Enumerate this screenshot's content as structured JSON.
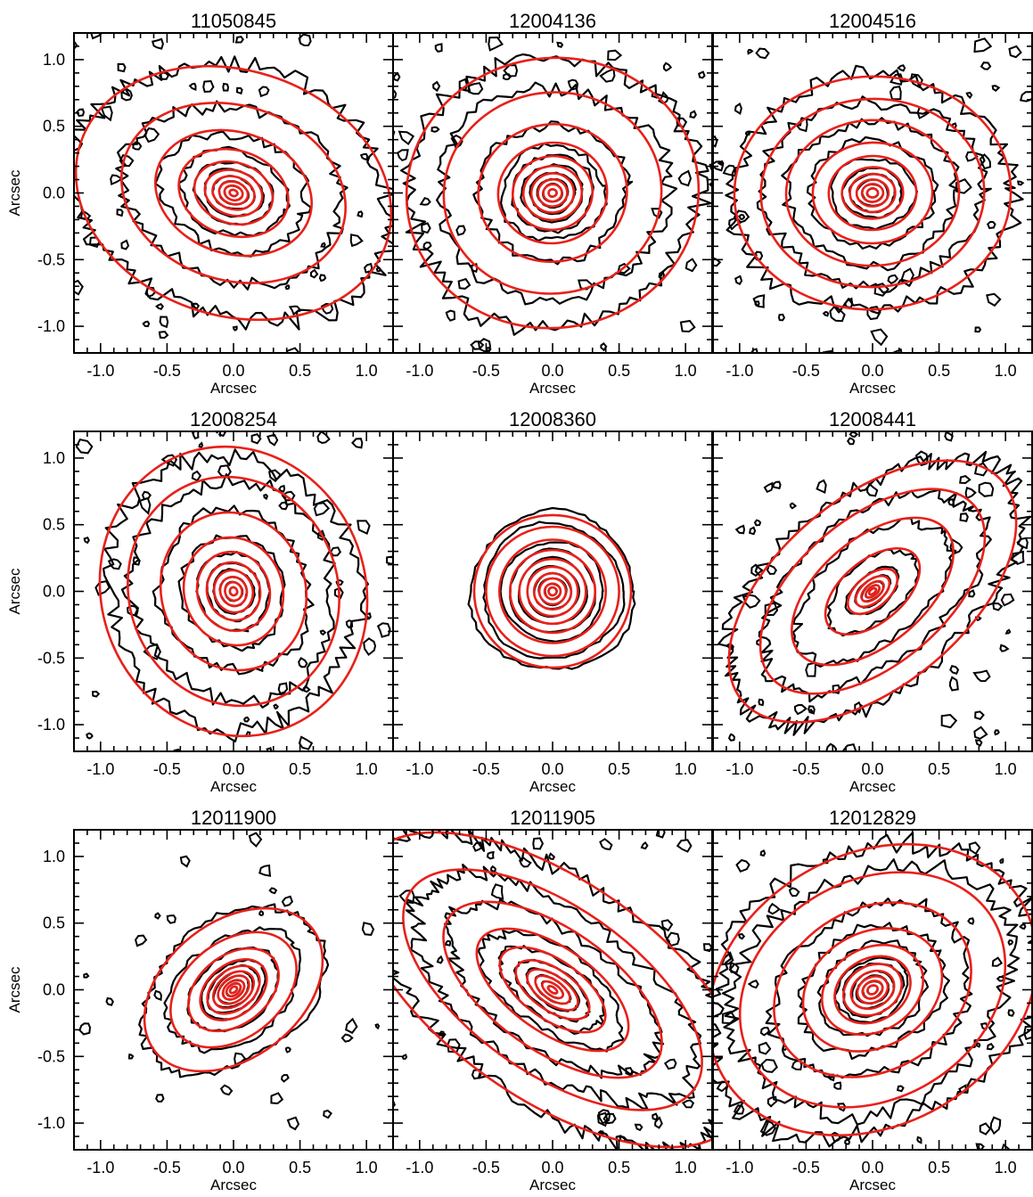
{
  "figure": {
    "colors": {
      "isophote_contours": "#000000",
      "ellipse_fits": "#e8201a",
      "axes": "#000000",
      "background": "#ffffff"
    },
    "grid": {
      "rows": 3,
      "cols": 3
    }
  },
  "chart_data": [
    {
      "type": "contour",
      "title": "11050845",
      "xlabel": "Arcsec",
      "ylabel": "Arcsec",
      "xlim": [
        -1.2,
        1.2
      ],
      "ylim": [
        -1.2,
        1.2
      ],
      "xticks": [
        "-1.0",
        "-0.5",
        "0.0",
        "0.5",
        "1.0"
      ],
      "yticks": [
        "-1.0",
        "-0.5",
        "0.0",
        "0.5",
        "1.0"
      ],
      "center": [
        0.0,
        0.0
      ],
      "ellipses": {
        "semi_major": [
          0.03,
          0.07,
          0.11,
          0.16,
          0.22,
          0.3,
          0.42,
          0.6,
          0.86,
          1.21
        ],
        "axis_ratio": 0.76,
        "position_angle_deg": -18
      },
      "contour_extent": 1.3,
      "noise": "high",
      "grid": false
    },
    {
      "type": "contour",
      "title": "12004136",
      "xlabel": "Arcsec",
      "ylabel": "",
      "xlim": [
        -1.2,
        1.2
      ],
      "ylim": [
        -1.2,
        1.2
      ],
      "xticks": [
        "-1.0",
        "-0.5",
        "0.0",
        "0.5",
        "1.0"
      ],
      "yticks": [],
      "center": [
        0.0,
        0.0
      ],
      "ellipses": {
        "semi_major": [
          0.03,
          0.07,
          0.11,
          0.16,
          0.22,
          0.3,
          0.41,
          0.56,
          0.82,
          1.1
        ],
        "axis_ratio": 0.92,
        "position_angle_deg": 8
      },
      "contour_extent": 1.3,
      "noise": "high",
      "grid": false
    },
    {
      "type": "contour",
      "title": "12004516",
      "xlabel": "Arcsec",
      "ylabel": "",
      "xlim": [
        -1.2,
        1.2
      ],
      "ylim": [
        -1.2,
        1.2
      ],
      "xticks": [
        "-1.0",
        "-0.5",
        "0.0",
        "0.5",
        "1.0"
      ],
      "yticks": [],
      "center": [
        0.0,
        0.0
      ],
      "ellipses": {
        "semi_major": [
          0.04,
          0.08,
          0.12,
          0.17,
          0.23,
          0.33,
          0.45,
          0.65,
          0.84,
          1.04
        ],
        "axis_ratio": 0.84,
        "position_angle_deg": 2
      },
      "contour_extent": 1.2,
      "noise": "high",
      "grid": false
    },
    {
      "type": "contour",
      "title": "12008254",
      "xlabel": "Arcsec",
      "ylabel": "Arcsec",
      "xlim": [
        -1.2,
        1.2
      ],
      "ylim": [
        -1.2,
        1.2
      ],
      "xticks": [
        "-1.0",
        "-0.5",
        "0.0",
        "0.5",
        "1.0"
      ],
      "yticks": [
        "-1.0",
        "-0.5",
        "0.0",
        "0.5",
        "1.0"
      ],
      "center": [
        0.0,
        0.0
      ],
      "ellipses": {
        "semi_major": [
          0.03,
          0.07,
          0.11,
          0.16,
          0.22,
          0.3,
          0.41,
          0.6,
          0.87,
          1.1
        ],
        "axis_ratio": 0.9,
        "position_angle_deg": -70
      },
      "contour_extent": 1.3,
      "noise": "high",
      "grid": false
    },
    {
      "type": "contour",
      "title": "12008360",
      "xlabel": "Arcsec",
      "ylabel": "",
      "xlim": [
        -1.2,
        1.2
      ],
      "ylim": [
        -1.2,
        1.2
      ],
      "xticks": [
        "-1.0",
        "-0.5",
        "0.0",
        "0.5",
        "1.0"
      ],
      "yticks": [],
      "center": [
        0.0,
        0.0
      ],
      "ellipses": {
        "semi_major": [
          0.03,
          0.06,
          0.1,
          0.14,
          0.19,
          0.25,
          0.32,
          0.4,
          0.5,
          0.59
        ],
        "axis_ratio": 0.97,
        "position_angle_deg": 0
      },
      "contour_extent": 0.62,
      "noise": "low",
      "grid": false
    },
    {
      "type": "contour",
      "title": "12008441",
      "xlabel": "Arcsec",
      "ylabel": "",
      "xlim": [
        -1.2,
        1.2
      ],
      "ylim": [
        -1.2,
        1.2
      ],
      "xticks": [
        "-1.0",
        "-0.5",
        "0.0",
        "0.5",
        "1.0"
      ],
      "yticks": [],
      "center": [
        0.0,
        0.0
      ],
      "ellipses": {
        "semi_major": [
          0.03,
          0.06,
          0.1,
          0.15,
          0.22,
          0.42,
          0.72,
          1.0,
          1.28
        ],
        "axis_ratio": 0.55,
        "position_angle_deg": 40
      },
      "contour_extent": 1.3,
      "noise": "high",
      "grid": false
    },
    {
      "type": "contour",
      "title": "12011900",
      "xlabel": "Arcsec",
      "ylabel": "Arcsec",
      "xlim": [
        -1.2,
        1.2
      ],
      "ylim": [
        -1.2,
        1.2
      ],
      "xticks": [
        "-1.0",
        "-0.5",
        "0.0",
        "0.5",
        "1.0"
      ],
      "yticks": [
        "-1.0",
        "-0.5",
        "0.0",
        "0.5",
        "1.0"
      ],
      "center": [
        0.0,
        0.0
      ],
      "ellipses": {
        "semi_major": [
          0.03,
          0.06,
          0.09,
          0.13,
          0.17,
          0.22,
          0.28,
          0.38,
          0.53,
          0.75
        ],
        "axis_ratio": 0.68,
        "position_angle_deg": 38
      },
      "contour_extent": 0.9,
      "noise": "medium",
      "grid": false
    },
    {
      "type": "contour",
      "title": "12011905",
      "xlabel": "Arcsec",
      "ylabel": "",
      "xlim": [
        -1.2,
        1.2
      ],
      "ylim": [
        -1.2,
        1.2
      ],
      "xticks": [
        "-1.0",
        "-0.5",
        "0.0",
        "0.5",
        "1.0"
      ],
      "yticks": [],
      "center": [
        0.0,
        0.0
      ],
      "ellipses": {
        "semi_major": [
          0.04,
          0.09,
          0.15,
          0.22,
          0.32,
          0.46,
          0.66,
          0.95,
          1.3,
          1.7
        ],
        "axis_ratio": 0.48,
        "position_angle_deg": -35
      },
      "contour_extent": 1.5,
      "noise": "high",
      "grid": false
    },
    {
      "type": "contour",
      "title": "12012829",
      "xlabel": "Arcsec",
      "ylabel": "",
      "xlim": [
        -1.2,
        1.2
      ],
      "ylim": [
        -1.2,
        1.2
      ],
      "xticks": [
        "-1.0",
        "-0.5",
        "0.0",
        "0.5",
        "1.0"
      ],
      "yticks": [],
      "center": [
        0.0,
        0.0
      ],
      "ellipses": {
        "semi_major": [
          0.04,
          0.08,
          0.12,
          0.17,
          0.23,
          0.3,
          0.4,
          0.55,
          0.78,
          1.05,
          1.3
        ],
        "axis_ratio": 0.78,
        "position_angle_deg": 30
      },
      "contour_extent": 1.3,
      "noise": "high",
      "grid": false
    }
  ]
}
